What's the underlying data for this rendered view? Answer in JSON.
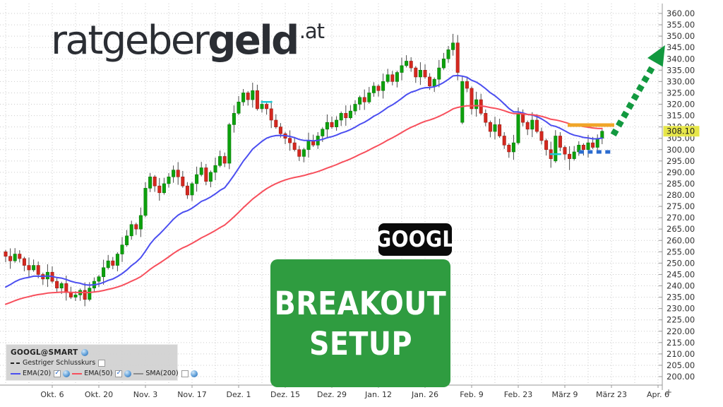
{
  "branding": {
    "logo_text_regular": "ratgeber",
    "logo_text_bold": "geld",
    "logo_suffix": ".at"
  },
  "overlays": {
    "ticker_badge": "GOOGL",
    "ticker_badge_bg": "#0a0a0a",
    "callout": {
      "line1": "BREAKOUT",
      "line2": "SETUP",
      "bg": "#2f9c40"
    }
  },
  "legend": {
    "title": "GOOGL@SMART",
    "title_gear": true,
    "rows": [
      {
        "label": "Gestriger Schlusskurs",
        "swatch": "dash",
        "color": "#222222",
        "checked": false,
        "gear": false
      },
      {
        "label": "EMA(20)",
        "swatch": "line",
        "color": "#4b4ef0",
        "checked": true,
        "gear": true
      },
      {
        "label": "EMA(50)",
        "swatch": "line",
        "color": "#f74f5c",
        "checked": true,
        "gear": true
      },
      {
        "label": "SMA(200)",
        "swatch": "line",
        "color": "#8d8d8d",
        "checked": false,
        "gear": true
      }
    ]
  },
  "chart_data": {
    "type": "candlestick",
    "title": "GOOGL@SMART",
    "last_price": "308.10",
    "y_axis": {
      "min": 200,
      "max": 360,
      "step": 5
    },
    "x_ticks": [
      {
        "day": 10,
        "label": "Okt. 6"
      },
      {
        "day": 20,
        "label": "Okt. 20"
      },
      {
        "day": 30,
        "label": "Nov. 3"
      },
      {
        "day": 40,
        "label": "Nov. 17"
      },
      {
        "day": 50,
        "label": "Dez. 1"
      },
      {
        "day": 60,
        "label": "Dez. 15"
      },
      {
        "day": 70,
        "label": "Dez. 29"
      },
      {
        "day": 80,
        "label": "Jan. 12"
      },
      {
        "day": 90,
        "label": "Jan. 26"
      },
      {
        "day": 100,
        "label": "Feb. 9"
      },
      {
        "day": 110,
        "label": "Feb. 23"
      },
      {
        "day": 120,
        "label": "März 9"
      },
      {
        "day": 130,
        "label": "März 23"
      },
      {
        "day": 140,
        "label": "Apr. 6"
      }
    ],
    "zoom_plus_label": "+",
    "first_open": 255,
    "closes": [
      253,
      251,
      254,
      252,
      249,
      247,
      249,
      245,
      243,
      246,
      242,
      239,
      241,
      237,
      235,
      236,
      238,
      234,
      239,
      242,
      244,
      248,
      251,
      249,
      254,
      258,
      262,
      267,
      265,
      271,
      283,
      288,
      284,
      281,
      285,
      288,
      291,
      288,
      284,
      280,
      285,
      289,
      292,
      286,
      290,
      293,
      297,
      294,
      311,
      316,
      321,
      325,
      322,
      326,
      318,
      320,
      318,
      313,
      310,
      307,
      305,
      303,
      300,
      297,
      300,
      304,
      302,
      306,
      309,
      312,
      310,
      313,
      316,
      314,
      317,
      320,
      323,
      321,
      325,
      328,
      326,
      330,
      333,
      330,
      334,
      337,
      339,
      336,
      332,
      335,
      332,
      328,
      331,
      336,
      340,
      344,
      347,
      334,
      330,
      327,
      318,
      322,
      316,
      312,
      308,
      311,
      306,
      302,
      299,
      303,
      316,
      312,
      309,
      313,
      308,
      304,
      300,
      296,
      306,
      301,
      298,
      296,
      299,
      302,
      300,
      303,
      301,
      305,
      308.1
    ],
    "open_overrides": {
      "98": 312,
      "118": 295
    },
    "high_overrides": {
      "96": 351,
      "36": 293
    },
    "low_overrides": {
      "17": 231,
      "63": 295,
      "117": 292,
      "121": 291
    },
    "indicators": [
      {
        "name": "EMA(20)",
        "period": 20,
        "color": "#4b4ef0",
        "start_value": 238
      },
      {
        "name": "EMA(50)",
        "period": 50,
        "color": "#f74f5c",
        "start_value": 231
      }
    ],
    "colors": {
      "up": "#0da10d",
      "up_border": "#087c08",
      "down": "#d5281f",
      "down_border": "#9c1d15",
      "wick": "#4a4a4a",
      "grid": "#cbcbcb",
      "axis": "#999999",
      "label": "#333333",
      "last_price_bg": "#e6e64a"
    },
    "annotations": {
      "resistance": {
        "from_day": 120.6,
        "to_day": 130.6,
        "price": 310.8,
        "color": "#f0a528"
      },
      "support": {
        "from_day": 123,
        "to_day": 130,
        "price": 299,
        "color": "#2b6cd0",
        "dashed": true
      },
      "breakout_arrow": {
        "from": {
          "day": 130.4,
          "price": 306.5
        },
        "to": {
          "day": 141.5,
          "price": 346
        },
        "color": "#12993f"
      },
      "event_markers": [
        {
          "day": 56,
          "price": 321,
          "color": "#1ecad3"
        },
        {
          "day": 118,
          "price": 298,
          "color": "#1ecad3"
        }
      ]
    }
  }
}
